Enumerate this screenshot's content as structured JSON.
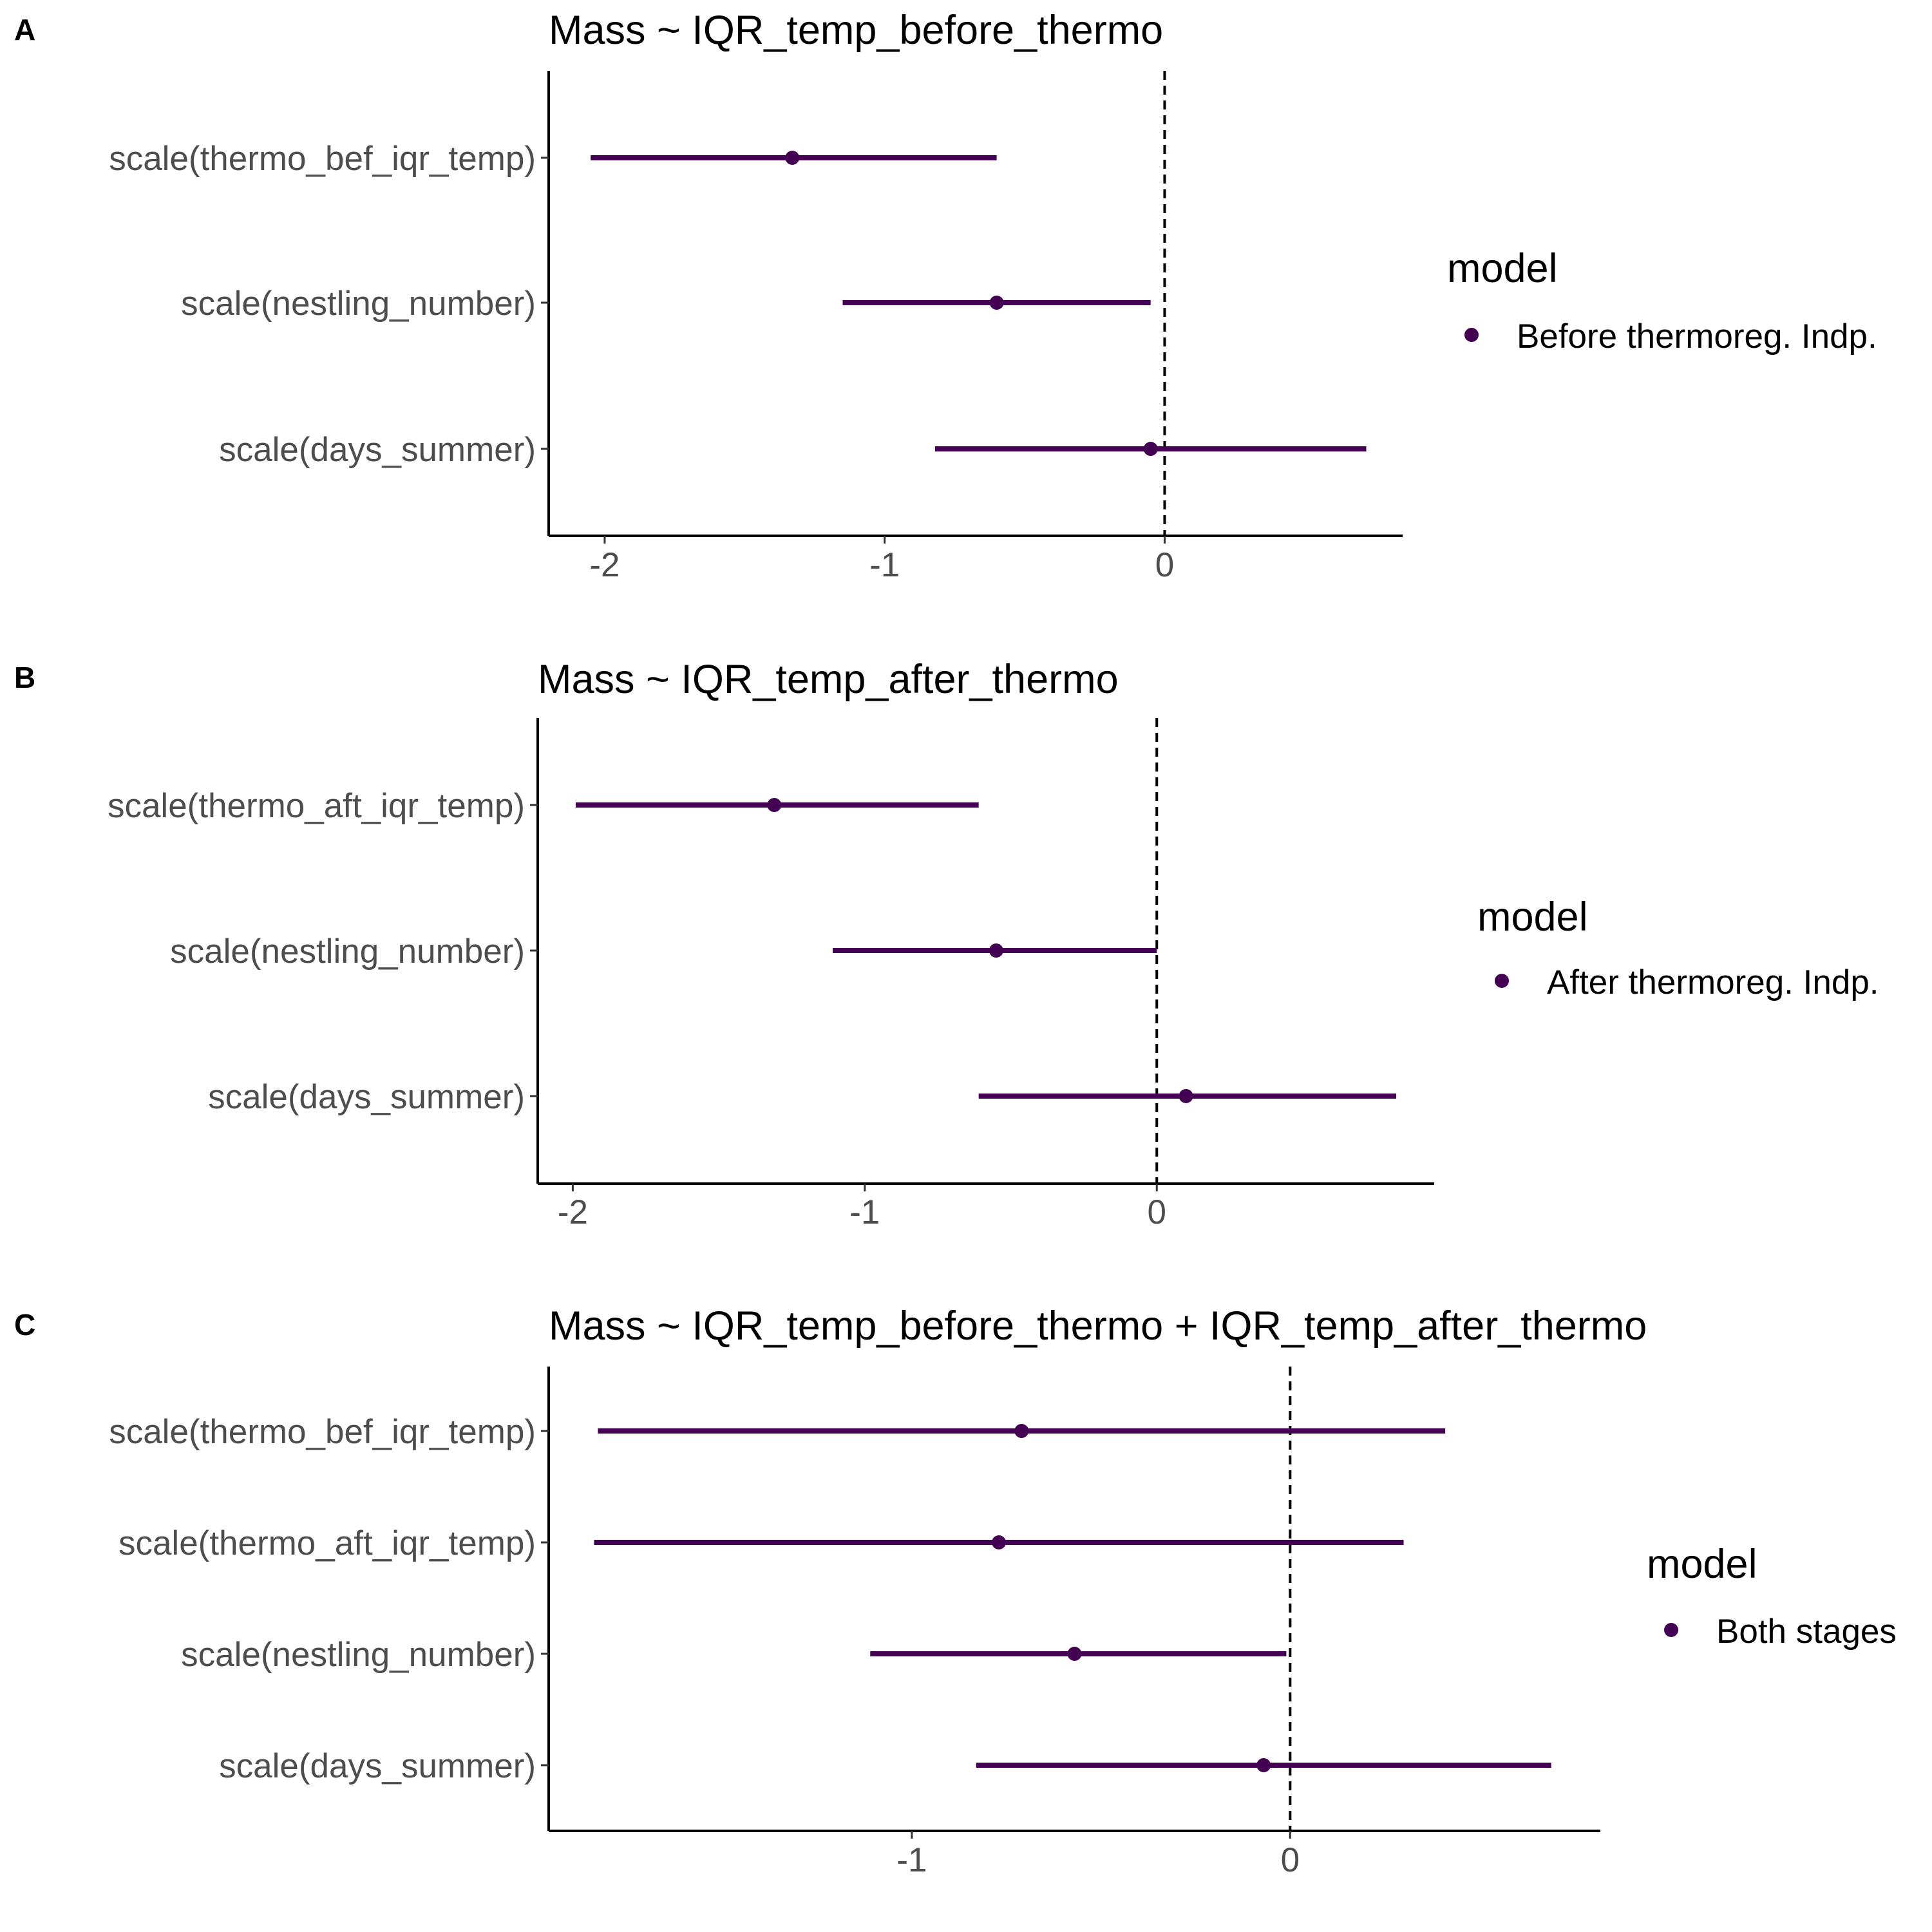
{
  "chart_data": [
    {
      "type": "coefficient-plot",
      "panel_label": "A",
      "title": "Mass ~ IQR_temp_before_thermo",
      "terms": [
        "scale(thermo_bef_iqr_temp)",
        "scale(nestling_number)",
        "scale(days_summer)"
      ],
      "estimate": [
        -1.33,
        -0.6,
        -0.05
      ],
      "conf_low": [
        -2.05,
        -1.15,
        -0.82
      ],
      "conf_high": [
        -0.6,
        -0.05,
        0.72
      ],
      "xticks": [
        -2,
        -1,
        0
      ],
      "xtick_labels": [
        "-2",
        "-1",
        "0"
      ],
      "xlim": [
        -2.2,
        0.85
      ],
      "reference_line": 0,
      "legend": {
        "title": "model",
        "label": "Before thermoreg. Indp.",
        "placement": "right"
      },
      "color": "#440154"
    },
    {
      "type": "coefficient-plot",
      "panel_label": "B",
      "title": "Mass ~ IQR_temp_after_thermo",
      "terms": [
        "scale(thermo_aft_iqr_temp)",
        "scale(nestling_number)",
        "scale(days_summer)"
      ],
      "estimate": [
        -1.31,
        -0.55,
        0.1
      ],
      "conf_low": [
        -1.99,
        -1.11,
        -0.61
      ],
      "conf_high": [
        -0.61,
        0.0,
        0.82
      ],
      "xticks": [
        -2,
        -1,
        0
      ],
      "xtick_labels": [
        "-2",
        "-1",
        "0"
      ],
      "xlim": [
        -2.12,
        0.95
      ],
      "reference_line": 0,
      "legend": {
        "title": "model",
        "label": "After thermoreg. Indp.",
        "placement": "right"
      },
      "color": "#440154"
    },
    {
      "type": "coefficient-plot",
      "panel_label": "C",
      "title": "Mass ~ IQR_temp_before_thermo + IQR_temp_after_thermo",
      "terms": [
        "scale(thermo_bef_iqr_temp)",
        "scale(thermo_aft_iqr_temp)",
        "scale(nestling_number)",
        "scale(days_summer)"
      ],
      "estimate": [
        -0.71,
        -0.77,
        -0.57,
        -0.07
      ],
      "conf_low": [
        -1.83,
        -1.84,
        -1.11,
        -0.83
      ],
      "conf_high": [
        0.41,
        0.3,
        -0.01,
        0.69
      ],
      "xticks": [
        -1,
        0
      ],
      "xtick_labels": [
        "-1",
        "0"
      ],
      "xlim": [
        -1.96,
        0.82
      ],
      "reference_line": 0,
      "legend": {
        "title": "model",
        "label": "Both stages",
        "placement": "right"
      },
      "color": "#440154"
    }
  ]
}
